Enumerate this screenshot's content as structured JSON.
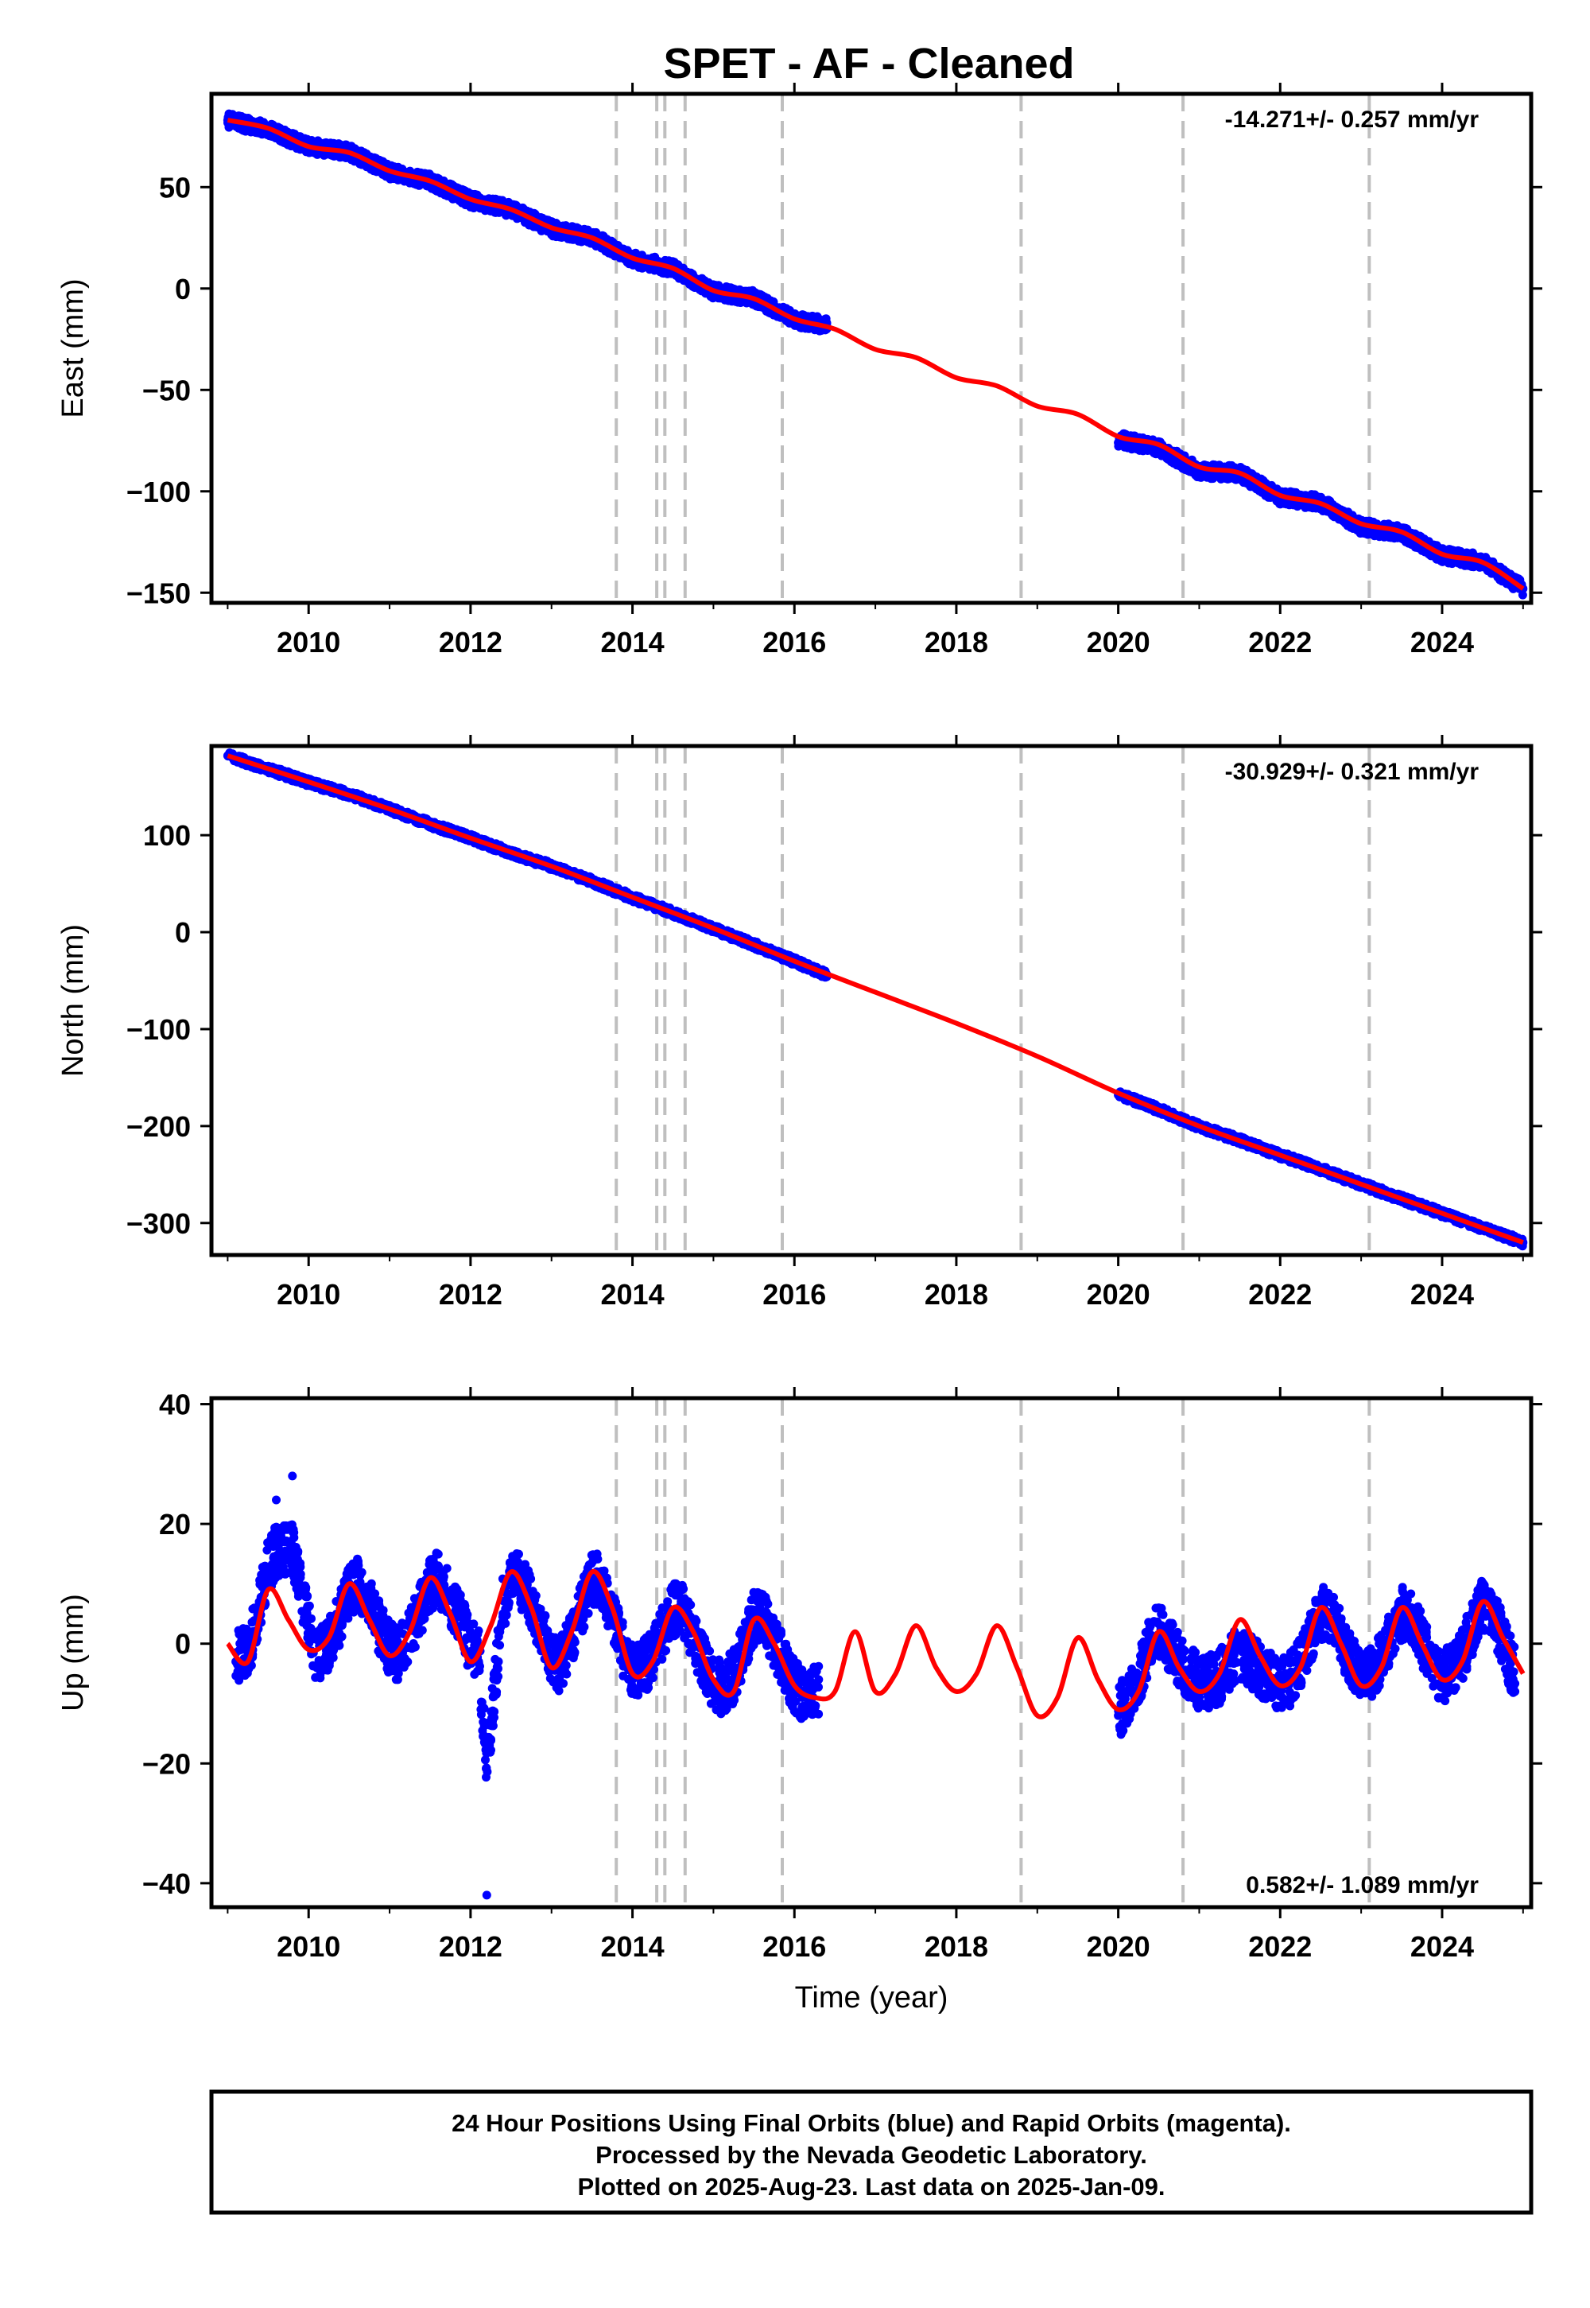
{
  "title": "SPET  - AF - Cleaned",
  "colors": {
    "data": "#0000ff",
    "model": "#ff0000",
    "steps": "#bfbfbf",
    "frame": "#000000"
  },
  "chart_data": [
    {
      "type": "scatter",
      "name": "east",
      "ylabel": "East (mm)",
      "xlabel": "",
      "xlim": [
        2008.8,
        2025.1
      ],
      "ylim": [
        -155,
        96
      ],
      "xticks": [
        2010,
        2012,
        2014,
        2016,
        2018,
        2020,
        2022,
        2024
      ],
      "xtick_labels": [
        "2010",
        "2012",
        "2014",
        "2016",
        "2018",
        "2020",
        "2022",
        "2024"
      ],
      "yticks": [
        -150,
        -100,
        -50,
        0,
        50
      ],
      "ytick_labels": [
        "−150",
        "−100",
        "−50",
        "0",
        "50"
      ],
      "rate_label": "-14.271+/- 0.257 mm/yr",
      "rate_position": "top-right",
      "series": [
        {
          "role": "data",
          "marker": "dot",
          "x": [
            2009.0,
            2009.5,
            2010.0,
            2010.5,
            2011.0,
            2011.5,
            2012.0,
            2012.5,
            2013.0,
            2013.5,
            2014.0,
            2014.5,
            2015.0,
            2015.5,
            2016.0,
            2016.4,
            2020.0,
            2020.5,
            2021.0,
            2021.5,
            2022.0,
            2022.5,
            2023.0,
            2023.5,
            2024.0,
            2024.5,
            2025.0
          ],
          "y": [
            83,
            78,
            70,
            68,
            57,
            53,
            43,
            39,
            29,
            26,
            14,
            10,
            -2,
            -4,
            -16,
            -17,
            -76,
            -80,
            -92,
            -91,
            -104,
            -105,
            -119,
            -121,
            -132,
            -134,
            -148
          ]
        },
        {
          "role": "model",
          "line": "solid",
          "x": [
            2009.0,
            2009.5,
            2010.0,
            2010.5,
            2011.0,
            2011.5,
            2012.0,
            2012.5,
            2013.0,
            2013.5,
            2014.0,
            2014.5,
            2015.0,
            2015.5,
            2016.0,
            2016.5,
            2017.0,
            2017.5,
            2018.0,
            2018.5,
            2019.0,
            2019.5,
            2020.0,
            2020.5,
            2021.0,
            2021.5,
            2022.0,
            2022.5,
            2023.0,
            2023.5,
            2024.0,
            2024.5,
            2025.0
          ],
          "y": [
            83,
            79,
            70,
            67,
            58,
            53,
            44,
            39,
            30,
            25,
            15,
            10,
            -1,
            -5,
            -15,
            -20,
            -30,
            -34,
            -44,
            -48,
            -58,
            -62,
            -73,
            -77,
            -88,
            -91,
            -102,
            -106,
            -116,
            -120,
            -131,
            -135,
            -148
          ]
        }
      ],
      "steps_x": [
        2013.8,
        2014.3,
        2014.4,
        2014.65,
        2015.85,
        2018.8,
        2020.8,
        2023.1
      ]
    },
    {
      "type": "scatter",
      "name": "north",
      "ylabel": "North (mm)",
      "xlabel": "",
      "xlim": [
        2008.8,
        2025.1
      ],
      "ylim": [
        -333,
        192
      ],
      "xticks": [
        2010,
        2012,
        2014,
        2016,
        2018,
        2020,
        2022,
        2024
      ],
      "xtick_labels": [
        "2010",
        "2012",
        "2014",
        "2016",
        "2018",
        "2020",
        "2022",
        "2024"
      ],
      "yticks": [
        -300,
        -200,
        -100,
        0,
        100
      ],
      "ytick_labels": [
        "−300",
        "−200",
        "−100",
        "0",
        "100"
      ],
      "rate_label": "-30.929+/- 0.321 mm/yr",
      "rate_position": "top-right",
      "series": [
        {
          "role": "data",
          "marker": "dot",
          "x": [
            2009.0,
            2009.5,
            2010.0,
            2010.5,
            2011.0,
            2011.5,
            2012.0,
            2012.5,
            2013.0,
            2013.5,
            2014.0,
            2014.5,
            2015.0,
            2015.5,
            2016.0,
            2016.4,
            2020.0,
            2020.5,
            2021.0,
            2021.5,
            2022.0,
            2022.5,
            2023.0,
            2023.5,
            2024.0,
            2024.5,
            2025.0
          ],
          "y": [
            182,
            168,
            154,
            143,
            127,
            111,
            97,
            81,
            68,
            53,
            35,
            20,
            3,
            -13,
            -30,
            -46,
            -168,
            -183,
            -201,
            -214,
            -230,
            -244,
            -260,
            -275,
            -290,
            -305,
            -320
          ]
        },
        {
          "role": "model",
          "line": "solid",
          "x": [
            2009.0,
            2010.0,
            2011.0,
            2012.0,
            2013.0,
            2014.0,
            2015.0,
            2016.0,
            2017.0,
            2018.0,
            2019.0,
            2020.0,
            2021.0,
            2022.0,
            2023.0,
            2024.0,
            2025.0
          ],
          "y": [
            182,
            155,
            127,
            97,
            68,
            36,
            4,
            -30,
            -62,
            -94,
            -128,
            -166,
            -200,
            -230,
            -260,
            -290,
            -320
          ]
        }
      ],
      "steps_x": [
        2013.8,
        2014.3,
        2014.4,
        2014.65,
        2015.85,
        2018.8,
        2020.8,
        2023.1
      ]
    },
    {
      "type": "scatter",
      "name": "up",
      "ylabel": "Up (mm)",
      "xlabel": "Time (year)",
      "xlim": [
        2008.8,
        2025.1
      ],
      "ylim": [
        -44,
        41
      ],
      "xticks": [
        2010,
        2012,
        2014,
        2016,
        2018,
        2020,
        2022,
        2024
      ],
      "xtick_labels": [
        "2010",
        "2012",
        "2014",
        "2016",
        "2018",
        "2020",
        "2022",
        "2024"
      ],
      "yticks": [
        -40,
        -20,
        0,
        20,
        40
      ],
      "ytick_labels": [
        "−40",
        "−20",
        "0",
        "20",
        "40"
      ],
      "rate_label": "0.582+/- 1.089 mm/yr",
      "rate_position": "bottom-right",
      "series": [
        {
          "role": "data",
          "marker": "dot",
          "x": [
            2009.1,
            2009.3,
            2009.6,
            2009.8,
            2010.1,
            2010.4,
            2010.6,
            2010.9,
            2011.1,
            2011.4,
            2011.6,
            2011.9,
            2012.1,
            2012.2,
            2012.4,
            2012.6,
            2012.9,
            2013.1,
            2013.4,
            2013.6,
            2013.9,
            2014.1,
            2014.4,
            2014.6,
            2014.9,
            2015.1,
            2015.4,
            2015.6,
            2015.9,
            2016.1,
            2016.3,
            2020.0,
            2020.2,
            2020.4,
            2020.6,
            2020.9,
            2021.1,
            2022.1,
            2022.4,
            2022.6,
            2022.9,
            2023.1,
            2023.4,
            2023.6,
            2023.9,
            2024.1,
            2024.4,
            2024.6,
            2024.9
          ],
          "y": [
            -3,
            2,
            24,
            28,
            -4,
            3,
            13,
            4,
            -3,
            5,
            13,
            6,
            -3,
            -42,
            5,
            12,
            3,
            -6,
            6,
            12,
            -3,
            -5,
            3,
            7,
            -5,
            -8,
            2,
            7,
            -5,
            -9,
            -6,
            -12,
            -6,
            3,
            1,
            -4,
            -6,
            -7,
            1,
            7,
            -3,
            -5,
            2,
            6,
            -4,
            -5,
            4,
            8,
            -8
          ]
        },
        {
          "role": "model",
          "line": "solid",
          "x": [
            2009.0,
            2009.25,
            2009.5,
            2009.75,
            2010.0,
            2010.25,
            2010.5,
            2010.75,
            2011.0,
            2011.25,
            2011.5,
            2011.75,
            2012.0,
            2012.25,
            2012.5,
            2012.75,
            2013.0,
            2013.25,
            2013.5,
            2013.75,
            2014.0,
            2014.25,
            2014.5,
            2014.75,
            2015.0,
            2015.25,
            2015.5,
            2015.75,
            2016.0,
            2016.25,
            2016.5,
            2016.75,
            2017.0,
            2017.25,
            2017.5,
            2017.75,
            2018.0,
            2018.25,
            2018.5,
            2018.75,
            2019.0,
            2019.25,
            2019.5,
            2019.75,
            2020.0,
            2020.25,
            2020.5,
            2020.75,
            2021.0,
            2021.25,
            2021.5,
            2021.75,
            2022.0,
            2022.25,
            2022.5,
            2022.75,
            2023.0,
            2023.25,
            2023.5,
            2023.75,
            2024.0,
            2024.25,
            2024.5,
            2024.75,
            2025.0
          ],
          "y": [
            0,
            -3,
            9,
            4,
            -1,
            1,
            10,
            4,
            -2,
            2,
            11,
            5,
            -3,
            3,
            12,
            6,
            -4,
            2,
            12,
            6,
            -5,
            -3,
            6,
            2,
            -6,
            -8,
            4,
            0,
            -7,
            -9,
            -8,
            2,
            -8,
            -5,
            3,
            -4,
            -8,
            -5,
            3,
            -4,
            -12,
            -9,
            1,
            -6,
            -11,
            -8,
            2,
            -4,
            -8,
            -5,
            4,
            -2,
            -7,
            -4,
            6,
            0,
            -7,
            -4,
            6,
            0,
            -6,
            -3,
            7,
            1,
            -5
          ]
        }
      ],
      "steps_x": [
        2013.8,
        2014.3,
        2014.4,
        2014.65,
        2015.85,
        2018.8,
        2020.8,
        2023.1
      ]
    }
  ],
  "footer": {
    "line1": "24 Hour Positions Using Final Orbits (blue) and Rapid Orbits (magenta).",
    "line2": "Processed by the Nevada Geodetic Laboratory.",
    "line3": "Plotted on 2025-Aug-23. Last data on 2025-Jan-09."
  }
}
